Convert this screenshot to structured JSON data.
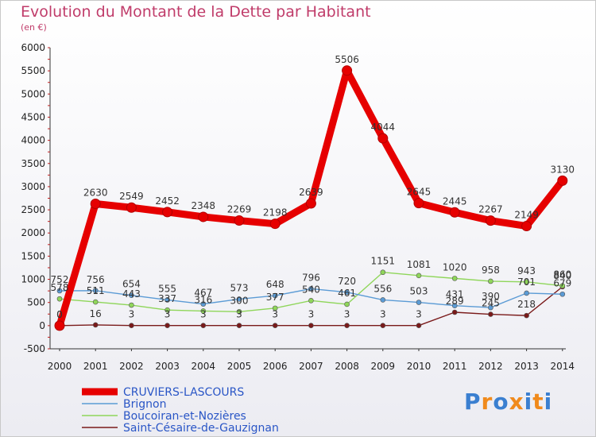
{
  "title": "Evolution du Montant de la Dette par Habitant",
  "subtitle": "(en €)",
  "logo": {
    "letters": [
      "P",
      "r",
      "o",
      "x",
      "i",
      "t",
      "i"
    ],
    "colors": [
      "#3a7fd0",
      "#f08a1c",
      "#3a7fd0",
      "#f08a1c",
      "#3a7fd0",
      "#f08a1c",
      "#3a7fd0"
    ]
  },
  "chart_data": {
    "type": "line",
    "title": "Evolution du Montant de la Dette par Habitant",
    "ylabel": "(en €)",
    "ylim": [
      -500,
      6000
    ],
    "yticks": [
      -500,
      0,
      500,
      1000,
      1500,
      2000,
      2500,
      3000,
      3500,
      4000,
      4500,
      5000,
      5500,
      6000
    ],
    "x": [
      "2000",
      "2001",
      "2002",
      "2003",
      "2004",
      "2005",
      "2006",
      "2007",
      "2008",
      "2009",
      "2010",
      "2011",
      "2012",
      "2013",
      "2014"
    ],
    "grid": false,
    "legend": "bottom-left",
    "series": [
      {
        "name": "CRUVIERS-LASCOURS",
        "color": "#e60000",
        "values": [
          0,
          2630,
          2549,
          2452,
          2348,
          2269,
          2198,
          2639,
          5506,
          4044,
          2645,
          2445,
          2267,
          2149,
          3130
        ],
        "labels": [
          "0",
          "2630",
          "2549",
          "2452",
          "2348",
          "2269",
          "2198",
          "2639",
          "5506",
          "4044",
          "2645",
          "2445",
          "2267",
          "2149",
          "3130"
        ]
      },
      {
        "name": "Brignon",
        "color": "#5b9bd5",
        "values": [
          752,
          756,
          654,
          555,
          467,
          573,
          648,
          796,
          720,
          556,
          503,
          431,
          390,
          701,
          679
        ],
        "labels": [
          "752",
          "756",
          "654",
          "555",
          "467",
          "573",
          "648",
          "796",
          "720",
          "556",
          "503",
          "431",
          "390",
          "701",
          "679"
        ]
      },
      {
        "name": "Boucoiran-et-Nozières",
        "color": "#8fd65a",
        "values": [
          578,
          511,
          443,
          337,
          316,
          300,
          377,
          540,
          461,
          1151,
          1081,
          1020,
          958,
          943,
          860
        ],
        "labels": [
          "578",
          "511",
          "443",
          "337",
          "316",
          "300",
          "377",
          "540",
          "461",
          "1151",
          "1081",
          "1020",
          "958",
          "943",
          "860"
        ]
      },
      {
        "name": "Saint-Césaire-de-Gauzignan",
        "color": "#7a1a1a",
        "values": [
          0,
          16,
          3,
          3,
          3,
          3,
          3,
          3,
          3,
          3,
          3,
          289,
          245,
          218,
          840
        ],
        "labels": [
          "0",
          "16",
          "3",
          "3",
          "3",
          "3",
          "3",
          "3",
          "3",
          "3",
          "3",
          "289",
          "245",
          "218",
          "840"
        ]
      }
    ]
  }
}
